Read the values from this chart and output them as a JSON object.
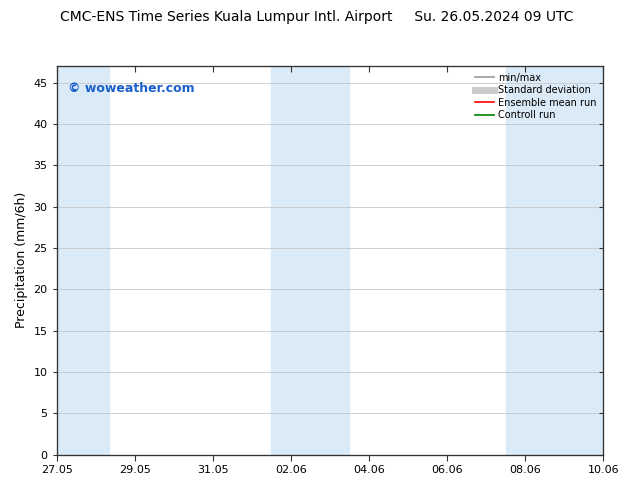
{
  "title": "CMC-ENS Time Series Kuala Lumpur Intl. Airport     Su. 26.05.2024 09 UTC",
  "title_left": "CMC-ENS Time Series Kuala Lumpur Intl. Airport",
  "title_right": "Su. 26.05.2024 09 UTC",
  "ylabel": "Precipitation (mm/6h)",
  "watermark": "© woweather.com",
  "ylim": [
    0,
    47
  ],
  "yticks": [
    0,
    5,
    10,
    15,
    20,
    25,
    30,
    35,
    40,
    45
  ],
  "xtick_positions": [
    0,
    2,
    4,
    6,
    8,
    10,
    12,
    14
  ],
  "xtick_labels": [
    "27.05",
    "29.05",
    "31.05",
    "02.06",
    "04.06",
    "06.06",
    "08.06",
    "10.06"
  ],
  "xlim": [
    0,
    14
  ],
  "shade_bands": [
    [
      0.0,
      1.35
    ],
    [
      5.5,
      6.5
    ],
    [
      6.5,
      7.5
    ],
    [
      11.5,
      12.5
    ],
    [
      12.5,
      14.0
    ]
  ],
  "shade_color": "#daeaf7",
  "legend_entries": [
    {
      "label": "min/max",
      "color": "#999999",
      "linewidth": 1.2,
      "linestyle": "-"
    },
    {
      "label": "Standard deviation",
      "color": "#cccccc",
      "linewidth": 5,
      "linestyle": "-"
    },
    {
      "label": "Ensemble mean run",
      "color": "#ff0000",
      "linewidth": 1.2,
      "linestyle": "-"
    },
    {
      "label": "Controll run",
      "color": "#008000",
      "linewidth": 1.2,
      "linestyle": "-"
    }
  ],
  "bg_color": "#ffffff",
  "grid_color": "#c8c8c8",
  "title_fontsize": 10,
  "ylabel_fontsize": 9,
  "tick_fontsize": 8,
  "watermark_color": "#1a5fcc",
  "watermark_fontsize": 9,
  "legend_fontsize": 7,
  "spine_color": "#333333"
}
